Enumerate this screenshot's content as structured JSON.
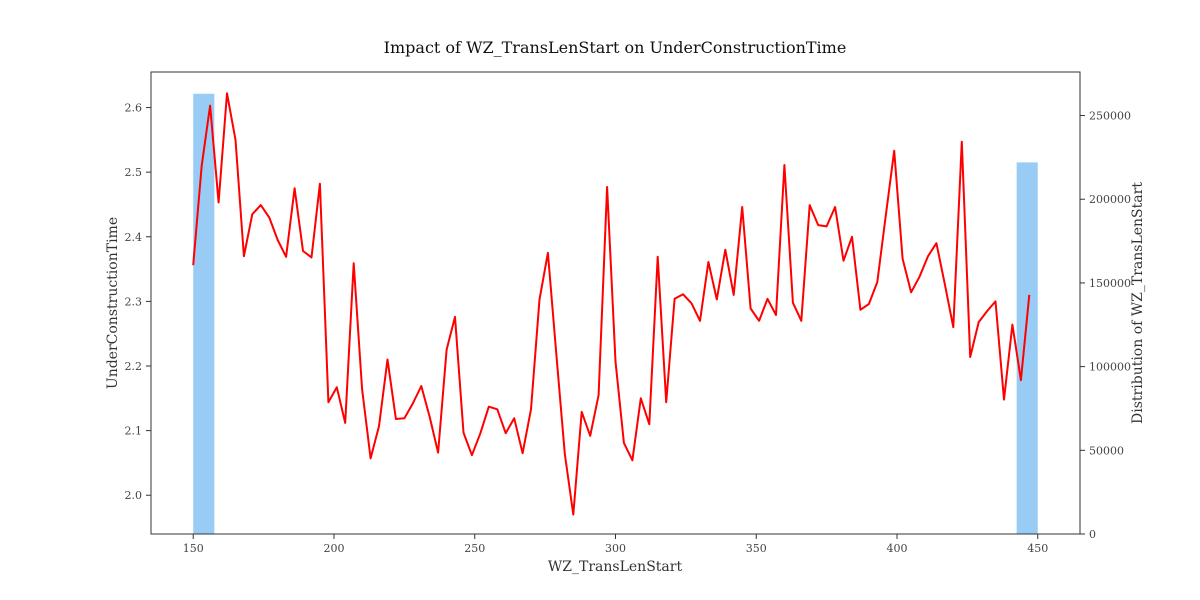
{
  "chart_data": {
    "type": "line",
    "title": "Impact of WZ_TransLenStart on UnderConstructionTime",
    "xlabel": "WZ_TransLenStart",
    "ylabel": "UnderConstructionTime",
    "y2label": "Distribution of WZ_TransLenStart",
    "xlim": [
      135,
      465
    ],
    "ylim": [
      1.94,
      2.655
    ],
    "y2lim": [
      0,
      276000
    ],
    "xticks": [
      150,
      200,
      250,
      300,
      350,
      400,
      450
    ],
    "yticks": [
      2.0,
      2.1,
      2.2,
      2.3,
      2.4,
      2.5,
      2.6
    ],
    "y2ticks": [
      0,
      50000,
      100000,
      150000,
      200000,
      250000
    ],
    "grid": false,
    "histogram": {
      "color": "#99ccf5",
      "bins": [
        {
          "x0": 150,
          "x1": 157.5,
          "count": 263000
        },
        {
          "x0": 442.5,
          "x1": 450,
          "count": 222000
        }
      ]
    },
    "series": [
      {
        "color": "#ff0000",
        "x": [
          150,
          153,
          156,
          159,
          162,
          165,
          168,
          171,
          174,
          177,
          180,
          183,
          186,
          189,
          192,
          195,
          198,
          201,
          204,
          207,
          210,
          213,
          216,
          219,
          222,
          225,
          228,
          231,
          234,
          237,
          240,
          243,
          246,
          249,
          252,
          255,
          258,
          261,
          264,
          267,
          270,
          273,
          276,
          279,
          282,
          285,
          288,
          291,
          294,
          297,
          300,
          303,
          306,
          309,
          312,
          315,
          318,
          321,
          324,
          327,
          330,
          333,
          336,
          339,
          342,
          345,
          348,
          351,
          354,
          357,
          360,
          363,
          366,
          369,
          372,
          375,
          378,
          381,
          384,
          387,
          390,
          393,
          396,
          399,
          402,
          405,
          408,
          411,
          414,
          417,
          420,
          423,
          426,
          429,
          432,
          435,
          438,
          441,
          444,
          447
        ],
        "y": [
          2.356,
          2.51,
          2.603,
          2.453,
          2.622,
          2.55,
          2.37,
          2.435,
          2.449,
          2.43,
          2.395,
          2.369,
          2.475,
          2.378,
          2.368,
          2.482,
          2.144,
          2.167,
          2.112,
          2.359,
          2.164,
          2.057,
          2.107,
          2.21,
          2.118,
          2.119,
          2.142,
          2.169,
          2.121,
          2.066,
          2.225,
          2.276,
          2.097,
          2.062,
          2.096,
          2.137,
          2.133,
          2.096,
          2.119,
          2.065,
          2.133,
          2.303,
          2.375,
          2.217,
          2.064,
          1.97,
          2.129,
          2.092,
          2.155,
          2.477,
          2.207,
          2.081,
          2.054,
          2.15,
          2.11,
          2.369,
          2.144,
          2.304,
          2.311,
          2.297,
          2.27,
          2.361,
          2.303,
          2.38,
          2.31,
          2.446,
          2.289,
          2.27,
          2.304,
          2.279,
          2.511,
          2.298,
          2.27,
          2.449,
          2.418,
          2.416,
          2.446,
          2.363,
          2.4,
          2.287,
          2.296,
          2.33,
          2.433,
          2.533,
          2.366,
          2.314,
          2.338,
          2.37,
          2.39,
          2.326,
          2.26,
          2.547,
          2.214,
          2.268,
          2.285,
          2.3,
          2.148,
          2.264,
          2.178,
          2.31
        ]
      }
    ]
  }
}
